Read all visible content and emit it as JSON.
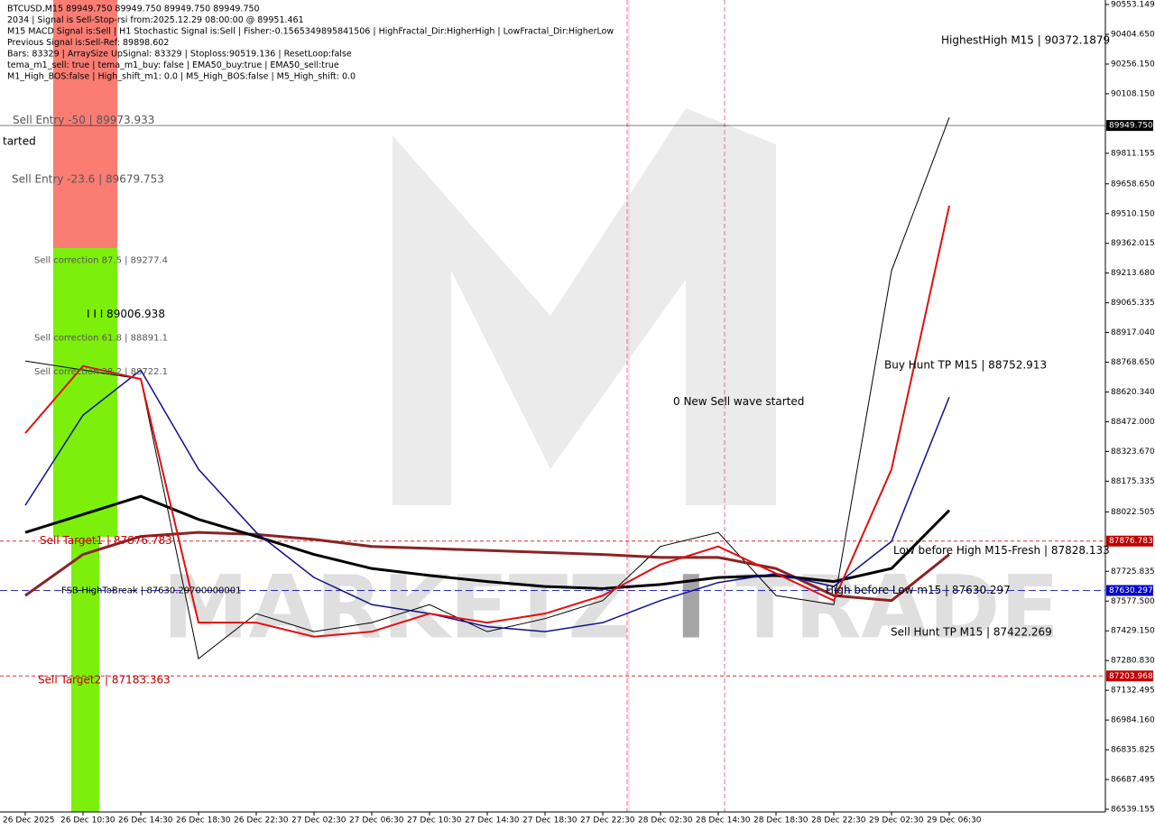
{
  "chart_data": {
    "type": "line",
    "header": [
      "BTCUSD,M15  89949.750 89949.750 89949.750 89949.750",
      "2034 | Signal is Sell-Stop-rsi from:2025.12.29 08:00:00 @ 89951.461",
      "M15 MACD Signal is:Sell | H1 Stochastic Signal is:Sell | Fisher:-0.1565349895841506 | HighFractal_Dir:HigherHigh | LowFractal_Dir:HigherLow",
      "Previous Signal is:Sell-Ref: 89898.602",
      "Bars: 83329 | ArraySize UpSignal: 83329 | Stoploss:90519.136 | ResetLoop:false",
      "tema_m1_sell: true | tema_m1_buy: false | EMA50_buy:true | EMA50_sell:true",
      "M1_High_BOS:false | High_shift_m1: 0.0 | M5_High_BOS:false | M5_High_shift: 0.0"
    ],
    "watermark": [
      "MARKETZ",
      "I",
      "TRADE"
    ],
    "categories": [
      "26 Dec 2025",
      "26 Dec 10:30",
      "26 Dec 14:30",
      "26 Dec 18:30",
      "26 Dec 22:30",
      "27 Dec 02:30",
      "27 Dec 06:30",
      "27 Dec 10:30",
      "27 Dec 14:30",
      "27 Dec 18:30",
      "27 Dec 22:30",
      "28 Dec 02:30",
      "28 Dec 14:30",
      "28 Dec 18:30",
      "28 Dec 22:30",
      "29 Dec 02:30",
      "29 Dec 06:30"
    ],
    "series": [
      {
        "color": "#000000",
        "values": [
          88775,
          88730,
          88685,
          87290,
          87515,
          87425,
          87470,
          87560,
          87425,
          87490,
          87580,
          87850,
          87920,
          87605,
          87560,
          89225,
          89990
        ]
      },
      {
        "color": "#8b2323",
        "values": [
          87605,
          87810,
          87900,
          87920,
          87910,
          87885,
          87850,
          87840,
          87830,
          87820,
          87810,
          87795,
          87795,
          87740,
          87605,
          87580,
          87810
        ]
      },
      {
        "color": "#000000",
        "values": [
          87920,
          88010,
          88100,
          87985,
          87900,
          87810,
          87740,
          87705,
          87675,
          87650,
          87640,
          87660,
          87695,
          87705,
          87675,
          87740,
          88030
        ]
      },
      {
        "color": "#10108b",
        "values": [
          88055,
          88505,
          88730,
          88235,
          87920,
          87695,
          87560,
          87515,
          87450,
          87425,
          87470,
          87580,
          87670,
          87715,
          87650,
          87875,
          88595
        ]
      },
      {
        "color": "#e01010",
        "values": [
          88415,
          88750,
          88685,
          87470,
          87470,
          87400,
          87425,
          87515,
          87470,
          87515,
          87605,
          87760,
          87850,
          87715,
          87580,
          88235,
          89550
        ]
      }
    ],
    "ylim": [
      86539.155,
      90553.149
    ],
    "yticks": [
      {
        "value": 90553.149,
        "label": "90553.149"
      },
      {
        "value": 90404.65,
        "label": "90404.650"
      },
      {
        "value": 90256.15,
        "label": "90256.150"
      },
      {
        "value": 90108.15,
        "label": "90108.150"
      },
      {
        "value": 89811.155,
        "label": "89811.155"
      },
      {
        "value": 89658.65,
        "label": "89658.650"
      },
      {
        "value": 89510.15,
        "label": "89510.150"
      },
      {
        "value": 89362.015,
        "label": "89362.015"
      },
      {
        "value": 89213.68,
        "label": "89213.680"
      },
      {
        "value": 89065.335,
        "label": "89065.335"
      },
      {
        "value": 88917.04,
        "label": "88917.040"
      },
      {
        "value": 88768.65,
        "label": "88768.650"
      },
      {
        "value": 88620.34,
        "label": "88620.340"
      },
      {
        "value": 88472,
        "label": "88472.000"
      },
      {
        "value": 88323.67,
        "label": "88323.670"
      },
      {
        "value": 88175.335,
        "label": "88175.335"
      },
      {
        "value": 88022.505,
        "label": "88022.505"
      },
      {
        "value": 87725.835,
        "label": "87725.835"
      },
      {
        "value": 87577.5,
        "label": "87577.500"
      },
      {
        "value": 87429.15,
        "label": "87429.150"
      },
      {
        "value": 87280.83,
        "label": "87280.830"
      },
      {
        "value": 87132.495,
        "label": "87132.495"
      },
      {
        "value": 86984.16,
        "label": "86984.160"
      },
      {
        "value": 86835.825,
        "label": "86835.825"
      },
      {
        "value": 86687.495,
        "label": "86687.495"
      },
      {
        "value": 86539.155,
        "label": "86539.155"
      }
    ],
    "levels": [
      {
        "value": 89949.75,
        "label": "89949.750",
        "color": "#000000"
      },
      {
        "value": 87876.783,
        "label": "87876.783",
        "color": "#c00000"
      },
      {
        "value": 87630.297,
        "label": "87630.297",
        "color": "#0000cc"
      },
      {
        "value": 87203.968,
        "label": "87203.968",
        "color": "#c00000"
      }
    ],
    "annotations": [
      {
        "text": "Sell Entry -50 | 89973.933",
        "value": 89973.933,
        "color": "#555555"
      },
      {
        "text": "tarted",
        "value": 89870,
        "color": "#000000"
      },
      {
        "text": "Sell Entry -23.6 | 89679.753",
        "value": 89679.753,
        "color": "#555555"
      },
      {
        "text": "I I I 89006.938",
        "value": 89006.938,
        "color": "#000000"
      },
      {
        "text": "Sell correction 87.5 | 89277.4",
        "value": 89277.4,
        "color": "#555555"
      },
      {
        "text": "Sell correction 61.8 | 88891.1",
        "value": 88891.1,
        "color": "#555555"
      },
      {
        "text": "Sell correction 38.2 | 88722.1",
        "value": 88722.1,
        "color": "#555555"
      },
      {
        "text": "Sell Target1 | 87876.783",
        "value": 87876.783,
        "color": "#c00000"
      },
      {
        "text": "FSB-HighToBreak | 87630.29700000001",
        "value": 87630.297,
        "color": "#000000"
      },
      {
        "text": "Sell Target2 | 87183.363",
        "value": 87183.363,
        "color": "#c00000"
      },
      {
        "text": "HighestHigh   M15 | 90372.1879",
        "value": 90372.1879,
        "color": "#000000"
      },
      {
        "text": "Buy Hunt TP M15 | 88752.913",
        "value": 88752.913,
        "color": "#000000"
      },
      {
        "text": "0 New Sell wave started",
        "value": 88570,
        "color": "#000000"
      },
      {
        "text": "Low before High   M15-Fresh | 87828.133",
        "value": 87828.133,
        "color": "#000000"
      },
      {
        "text": "High before Low m15 | 87630.297",
        "value": 87630.297,
        "color": "#000000"
      },
      {
        "text": "Sell Hunt TP M15 | 87422.269",
        "value": 87422.269,
        "color": "#000000"
      }
    ]
  }
}
